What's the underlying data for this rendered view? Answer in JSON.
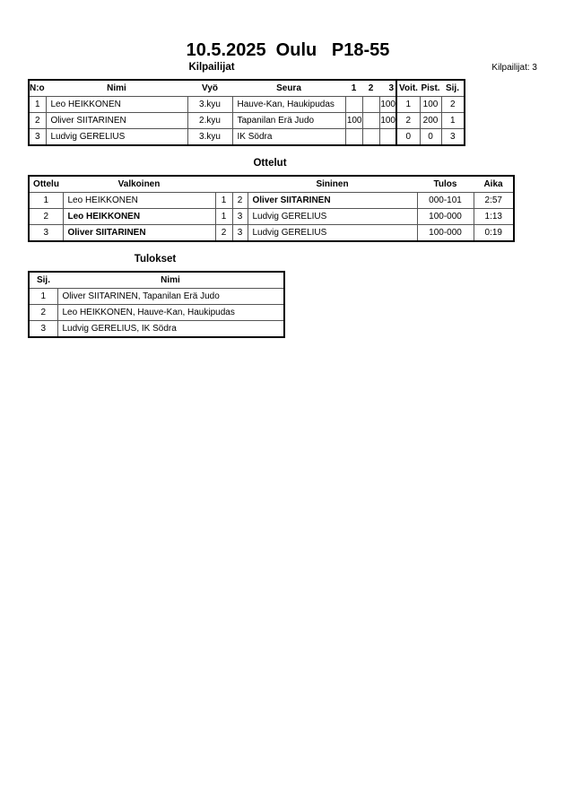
{
  "title": "10.5.2025  Oulu   P18-55",
  "competitors": {
    "heading": "Kilpailijat",
    "count_label": "Kilpailijat: 3",
    "columns": [
      "N:o",
      "Nimi",
      "Vyö",
      "Seura",
      "1",
      "2",
      "3",
      "Voit.",
      "Pist.",
      "Sij."
    ],
    "rows": [
      {
        "no": "1",
        "name": "Leo HEIKKONEN",
        "belt": "3.kyu",
        "club": "Hauve-Kan, Haukipudas",
        "r1": "",
        "r2": "",
        "r3": "100",
        "wins": "1",
        "points": "100",
        "place": "2"
      },
      {
        "no": "2",
        "name": "Oliver SIITARINEN",
        "belt": "2.kyu",
        "club": "Tapanilan Erä Judo",
        "r1": "100",
        "r2": "",
        "r3": "100",
        "wins": "2",
        "points": "200",
        "place": "1"
      },
      {
        "no": "3",
        "name": "Ludvig GERELIUS",
        "belt": "3.kyu",
        "club": "IK Södra",
        "r1": "",
        "r2": "",
        "r3": "",
        "wins": "0",
        "points": "0",
        "place": "3"
      }
    ]
  },
  "matches": {
    "heading": "Ottelut",
    "columns": [
      "Ottelu",
      "Valkoinen",
      "Sininen",
      "Tulos",
      "Aika"
    ],
    "rows": [
      {
        "no": "1",
        "white": "Leo HEIKKONEN",
        "wn": "1",
        "bn": "2",
        "blue": "Oliver SIITARINEN",
        "result": "000-101",
        "time": "2:57",
        "winner": "blue"
      },
      {
        "no": "2",
        "white": "Leo HEIKKONEN",
        "wn": "1",
        "bn": "3",
        "blue": "Ludvig GERELIUS",
        "result": "100-000",
        "time": "1:13",
        "winner": "white"
      },
      {
        "no": "3",
        "white": "Oliver SIITARINEN",
        "wn": "2",
        "bn": "3",
        "blue": "Ludvig GERELIUS",
        "result": "100-000",
        "time": "0:19",
        "winner": "white"
      }
    ]
  },
  "results": {
    "heading": "Tulokset",
    "columns": [
      "Sij.",
      "Nimi"
    ],
    "rows": [
      {
        "place": "1",
        "name": "Oliver SIITARINEN, Tapanilan Erä Judo"
      },
      {
        "place": "2",
        "name": "Leo HEIKKONEN, Hauve-Kan, Haukipudas"
      },
      {
        "place": "3",
        "name": "Ludvig GERELIUS, IK Södra"
      }
    ]
  }
}
